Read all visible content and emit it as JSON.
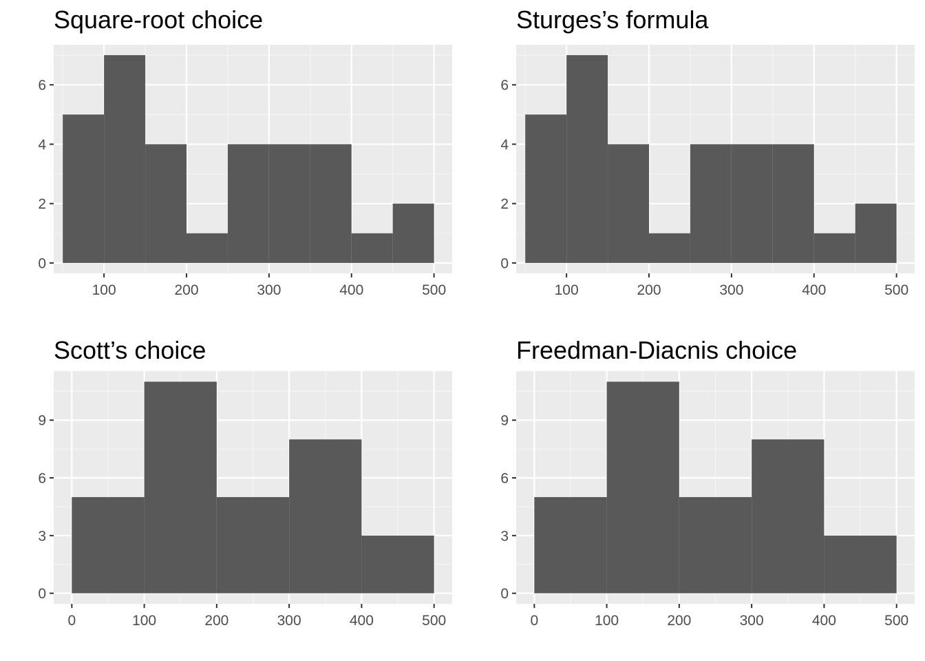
{
  "chart_data": [
    {
      "type": "bar",
      "title": "Square-root choice",
      "xlabel": "",
      "ylabel": "",
      "bins": [
        {
          "x0": 50,
          "x1": 100,
          "count": 5
        },
        {
          "x0": 100,
          "x1": 150,
          "count": 7
        },
        {
          "x0": 150,
          "x1": 200,
          "count": 4
        },
        {
          "x0": 200,
          "x1": 250,
          "count": 1
        },
        {
          "x0": 250,
          "x1": 300,
          "count": 4
        },
        {
          "x0": 300,
          "x1": 350,
          "count": 4
        },
        {
          "x0": 350,
          "x1": 400,
          "count": 4
        },
        {
          "x0": 400,
          "x1": 450,
          "count": 1
        },
        {
          "x0": 450,
          "x1": 500,
          "count": 2
        }
      ],
      "xlim": [
        39,
        522
      ],
      "ylim": [
        -0.35,
        7.35
      ],
      "xticks": [
        100,
        200,
        300,
        400,
        500
      ],
      "xminor": [
        50,
        150,
        250,
        350,
        450
      ],
      "yticks": [
        0,
        2,
        4,
        6
      ],
      "yminor": [
        1,
        3,
        5,
        7
      ],
      "grid": true,
      "legend": "none"
    },
    {
      "type": "bar",
      "title": "Sturges’s formula",
      "xlabel": "",
      "ylabel": "",
      "bins": [
        {
          "x0": 50,
          "x1": 100,
          "count": 5
        },
        {
          "x0": 100,
          "x1": 150,
          "count": 7
        },
        {
          "x0": 150,
          "x1": 200,
          "count": 4
        },
        {
          "x0": 200,
          "x1": 250,
          "count": 1
        },
        {
          "x0": 250,
          "x1": 300,
          "count": 4
        },
        {
          "x0": 300,
          "x1": 350,
          "count": 4
        },
        {
          "x0": 350,
          "x1": 400,
          "count": 4
        },
        {
          "x0": 400,
          "x1": 450,
          "count": 1
        },
        {
          "x0": 450,
          "x1": 500,
          "count": 2
        }
      ],
      "xlim": [
        39,
        522
      ],
      "ylim": [
        -0.35,
        7.35
      ],
      "xticks": [
        100,
        200,
        300,
        400,
        500
      ],
      "xminor": [
        50,
        150,
        250,
        350,
        450
      ],
      "yticks": [
        0,
        2,
        4,
        6
      ],
      "yminor": [
        1,
        3,
        5,
        7
      ],
      "grid": true,
      "legend": "none"
    },
    {
      "type": "bar",
      "title": "Scott’s choice",
      "xlabel": "",
      "ylabel": "",
      "bins": [
        {
          "x0": 0,
          "x1": 100,
          "count": 5
        },
        {
          "x0": 100,
          "x1": 200,
          "count": 11
        },
        {
          "x0": 200,
          "x1": 300,
          "count": 5
        },
        {
          "x0": 300,
          "x1": 400,
          "count": 8
        },
        {
          "x0": 400,
          "x1": 500,
          "count": 3
        }
      ],
      "xlim": [
        -25,
        525
      ],
      "ylim": [
        -0.55,
        11.55
      ],
      "xticks": [
        0,
        100,
        200,
        300,
        400,
        500
      ],
      "xminor": [
        50,
        150,
        250,
        350,
        450
      ],
      "yticks": [
        0,
        3,
        6,
        9
      ],
      "yminor": [
        1.5,
        4.5,
        7.5,
        10.5
      ],
      "grid": true,
      "legend": "none"
    },
    {
      "type": "bar",
      "title": "Freedman-Diacnis choice",
      "xlabel": "",
      "ylabel": "",
      "bins": [
        {
          "x0": 0,
          "x1": 100,
          "count": 5
        },
        {
          "x0": 100,
          "x1": 200,
          "count": 11
        },
        {
          "x0": 200,
          "x1": 300,
          "count": 5
        },
        {
          "x0": 300,
          "x1": 400,
          "count": 8
        },
        {
          "x0": 400,
          "x1": 500,
          "count": 3
        }
      ],
      "xlim": [
        -25,
        525
      ],
      "ylim": [
        -0.55,
        11.55
      ],
      "xticks": [
        0,
        100,
        200,
        300,
        400,
        500
      ],
      "xminor": [
        50,
        150,
        250,
        350,
        450
      ],
      "yticks": [
        0,
        3,
        6,
        9
      ],
      "yminor": [
        1.5,
        4.5,
        7.5,
        10.5
      ],
      "grid": true,
      "legend": "none"
    }
  ],
  "colors": {
    "panel_background": "#ebebeb",
    "grid_major": "#ffffff",
    "grid_minor": "#f5f5f5",
    "bar_fill": "#595959",
    "tick_color": "#333333",
    "tick_label": "#4d4d4d",
    "title": "#000000"
  }
}
